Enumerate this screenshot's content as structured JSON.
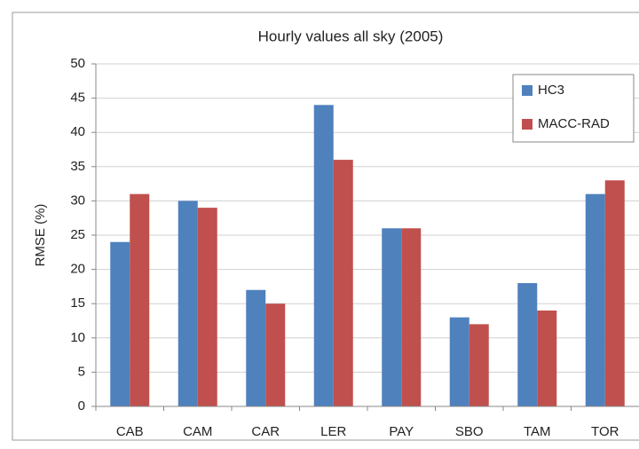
{
  "chart_data": {
    "type": "bar",
    "title": "Hourly values all sky (2005)",
    "y_label": "RMSE (%)",
    "categories": [
      "CAB",
      "CAM",
      "CAR",
      "LER",
      "PAY",
      "SBO",
      "TAM",
      "TOR"
    ],
    "series": [
      {
        "name": "HC3",
        "color": "#4f81bd",
        "values": [
          24,
          30,
          17,
          44,
          26,
          13,
          18,
          31
        ]
      },
      {
        "name": "MACC-RAD",
        "color": "#c0504d",
        "values": [
          31,
          29,
          15,
          36,
          26,
          12,
          14,
          33
        ]
      }
    ],
    "ylim": [
      0,
      50
    ],
    "yticks": [
      0,
      5,
      10,
      15,
      20,
      25,
      30,
      35,
      40,
      45,
      50
    ],
    "grid": true,
    "legend": "upper right"
  }
}
